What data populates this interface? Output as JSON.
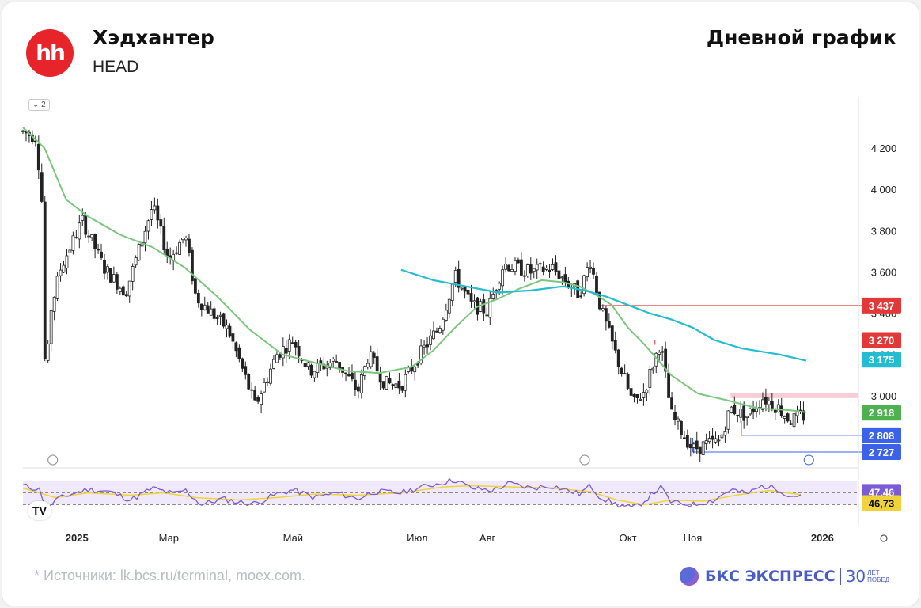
{
  "header": {
    "logo_text": "hh",
    "company": "Хэдхантер",
    "ticker": "HEAD",
    "chart_title": "Дневной график",
    "interval_badge": "2"
  },
  "footer": {
    "source": "*  Источники: lk.bcs.ru/terminal, moex.com.",
    "brand_name": "БКС ЭКСПРЕСС",
    "brand_years": "30",
    "brand_small_1": "ЛЕТ",
    "brand_small_2": "ПОБЕД"
  },
  "colors": {
    "up": "#2e2e2e",
    "down": "#2e2e2e",
    "ma_fast": "#7bc67e",
    "ma_slow": "#23bcd1",
    "resistance": "#e23838",
    "support": "#3b62e8",
    "rsi": "#7b5cd6",
    "rsi_signal": "#f0d33a"
  },
  "chart_data": {
    "type": "candlestick",
    "x_ticks": [
      {
        "label": "2025",
        "t": 0.1
      },
      {
        "label": "Мар",
        "t": 0.27
      },
      {
        "label": "Май",
        "t": 0.5
      },
      {
        "label": "Июл",
        "t": 0.73
      },
      {
        "label": "Авг",
        "t": 0.86
      },
      {
        "label": "Окт",
        "t": 1.12
      },
      {
        "label": "Ноя",
        "t": 1.24
      },
      {
        "label": "2026",
        "t": 1.48
      }
    ],
    "x_range": [
      0,
      1.5
    ],
    "y_range": [
      2700,
      4350
    ],
    "y_ticks": [
      3000,
      3200,
      3400,
      3600,
      3800,
      4000,
      4200
    ],
    "y_tick_labels": [
      "3 000",
      "3 200",
      "3 400",
      "3 600",
      "3 800",
      "4 000",
      "4 200"
    ],
    "price_path": [
      [
        0.0,
        4280
      ],
      [
        0.025,
        4250
      ],
      [
        0.035,
        3940
      ],
      [
        0.042,
        2990
      ],
      [
        0.05,
        3400
      ],
      [
        0.07,
        3620
      ],
      [
        0.11,
        3850
      ],
      [
        0.15,
        3620
      ],
      [
        0.19,
        3500
      ],
      [
        0.24,
        3920
      ],
      [
        0.27,
        3660
      ],
      [
        0.3,
        3780
      ],
      [
        0.32,
        3480
      ],
      [
        0.38,
        3320
      ],
      [
        0.41,
        3100
      ],
      [
        0.43,
        2950
      ],
      [
        0.47,
        3200
      ],
      [
        0.5,
        3270
      ],
      [
        0.53,
        3120
      ],
      [
        0.58,
        3170
      ],
      [
        0.62,
        3020
      ],
      [
        0.64,
        3200
      ],
      [
        0.67,
        3060
      ],
      [
        0.7,
        3050
      ],
      [
        0.74,
        3220
      ],
      [
        0.77,
        3330
      ],
      [
        0.8,
        3580
      ],
      [
        0.83,
        3440
      ],
      [
        0.86,
        3410
      ],
      [
        0.89,
        3640
      ],
      [
        0.94,
        3600
      ],
      [
        0.98,
        3620
      ],
      [
        1.03,
        3490
      ],
      [
        1.05,
        3660
      ],
      [
        1.07,
        3420
      ],
      [
        1.1,
        3180
      ],
      [
        1.13,
        2960
      ],
      [
        1.15,
        3020
      ],
      [
        1.18,
        3260
      ],
      [
        1.2,
        2910
      ],
      [
        1.24,
        2740
      ],
      [
        1.26,
        2760
      ],
      [
        1.29,
        2780
      ],
      [
        1.31,
        2940
      ],
      [
        1.34,
        2900
      ],
      [
        1.37,
        2990
      ],
      [
        1.4,
        2940
      ],
      [
        1.42,
        2880
      ],
      [
        1.44,
        2900
      ]
    ],
    "ma_fast": [
      [
        0.0,
        4300
      ],
      [
        0.04,
        4200
      ],
      [
        0.08,
        3950
      ],
      [
        0.12,
        3870
      ],
      [
        0.18,
        3780
      ],
      [
        0.24,
        3720
      ],
      [
        0.3,
        3620
      ],
      [
        0.36,
        3480
      ],
      [
        0.42,
        3320
      ],
      [
        0.48,
        3200
      ],
      [
        0.54,
        3160
      ],
      [
        0.6,
        3120
      ],
      [
        0.66,
        3110
      ],
      [
        0.72,
        3140
      ],
      [
        0.76,
        3220
      ],
      [
        0.8,
        3330
      ],
      [
        0.84,
        3430
      ],
      [
        0.88,
        3470
      ],
      [
        0.92,
        3520
      ],
      [
        0.96,
        3560
      ],
      [
        1.0,
        3550
      ],
      [
        1.03,
        3530
      ],
      [
        1.06,
        3490
      ],
      [
        1.09,
        3440
      ],
      [
        1.12,
        3330
      ],
      [
        1.15,
        3250
      ],
      [
        1.2,
        3100
      ],
      [
        1.25,
        3010
      ],
      [
        1.3,
        2980
      ],
      [
        1.36,
        2940
      ],
      [
        1.42,
        2930
      ],
      [
        1.45,
        2920
      ]
    ],
    "ma_slow": [
      [
        0.7,
        3610
      ],
      [
        0.76,
        3560
      ],
      [
        0.82,
        3530
      ],
      [
        0.88,
        3500
      ],
      [
        0.94,
        3510
      ],
      [
        1.0,
        3530
      ],
      [
        1.04,
        3510
      ],
      [
        1.08,
        3480
      ],
      [
        1.12,
        3440
      ],
      [
        1.16,
        3400
      ],
      [
        1.2,
        3370
      ],
      [
        1.24,
        3330
      ],
      [
        1.28,
        3270
      ],
      [
        1.33,
        3230
      ],
      [
        1.4,
        3200
      ],
      [
        1.45,
        3170
      ]
    ],
    "levels": [
      {
        "value": 3437,
        "label": "3 437",
        "type": "resistance",
        "from": 1.07
      },
      {
        "value": 3270,
        "label": "3 270",
        "type": "resistance",
        "from": 1.17
      },
      {
        "value": 3000,
        "label": "",
        "type": "zone",
        "from": 1.31
      },
      {
        "value": 2808,
        "label": "2 808",
        "type": "support",
        "from": 1.33
      },
      {
        "value": 2727,
        "label": "2 727",
        "type": "support",
        "from": 1.24
      }
    ],
    "price_badges": [
      {
        "value": 3175,
        "label": "3 175",
        "series": "ma_slow"
      },
      {
        "value": 2918,
        "label": "2 918",
        "series": "ma_fast"
      }
    ],
    "rsi": {
      "levels": [
        70,
        50,
        30
      ],
      "value_label": "47,46",
      "signal_label": "46,73",
      "value": 47.46,
      "signal": 46.73,
      "path": [
        [
          0.0,
          62
        ],
        [
          0.03,
          56
        ],
        [
          0.045,
          22
        ],
        [
          0.06,
          38
        ],
        [
          0.09,
          48
        ],
        [
          0.12,
          56
        ],
        [
          0.16,
          52
        ],
        [
          0.2,
          38
        ],
        [
          0.24,
          58
        ],
        [
          0.28,
          48
        ],
        [
          0.3,
          55
        ],
        [
          0.33,
          30
        ],
        [
          0.37,
          40
        ],
        [
          0.4,
          34
        ],
        [
          0.43,
          32
        ],
        [
          0.47,
          48
        ],
        [
          0.5,
          55
        ],
        [
          0.54,
          42
        ],
        [
          0.58,
          50
        ],
        [
          0.62,
          40
        ],
        [
          0.65,
          52
        ],
        [
          0.7,
          50
        ],
        [
          0.74,
          60
        ],
        [
          0.78,
          68
        ],
        [
          0.8,
          72
        ],
        [
          0.83,
          58
        ],
        [
          0.87,
          54
        ],
        [
          0.9,
          66
        ],
        [
          0.94,
          58
        ],
        [
          0.98,
          62
        ],
        [
          1.03,
          48
        ],
        [
          1.05,
          62
        ],
        [
          1.07,
          42
        ],
        [
          1.1,
          30
        ],
        [
          1.13,
          24
        ],
        [
          1.15,
          36
        ],
        [
          1.18,
          60
        ],
        [
          1.2,
          34
        ],
        [
          1.24,
          30
        ],
        [
          1.28,
          38
        ],
        [
          1.31,
          56
        ],
        [
          1.34,
          48
        ],
        [
          1.37,
          62
        ],
        [
          1.4,
          56
        ],
        [
          1.42,
          44
        ],
        [
          1.44,
          47
        ]
      ],
      "signal_path": [
        [
          0.0,
          58
        ],
        [
          0.06,
          42
        ],
        [
          0.12,
          50
        ],
        [
          0.2,
          46
        ],
        [
          0.26,
          50
        ],
        [
          0.32,
          42
        ],
        [
          0.4,
          38
        ],
        [
          0.47,
          42
        ],
        [
          0.54,
          48
        ],
        [
          0.62,
          46
        ],
        [
          0.7,
          50
        ],
        [
          0.78,
          60
        ],
        [
          0.83,
          62
        ],
        [
          0.9,
          60
        ],
        [
          0.98,
          58
        ],
        [
          1.05,
          52
        ],
        [
          1.1,
          38
        ],
        [
          1.15,
          30
        ],
        [
          1.2,
          38
        ],
        [
          1.26,
          36
        ],
        [
          1.32,
          46
        ],
        [
          1.38,
          54
        ],
        [
          1.44,
          47
        ]
      ]
    }
  }
}
